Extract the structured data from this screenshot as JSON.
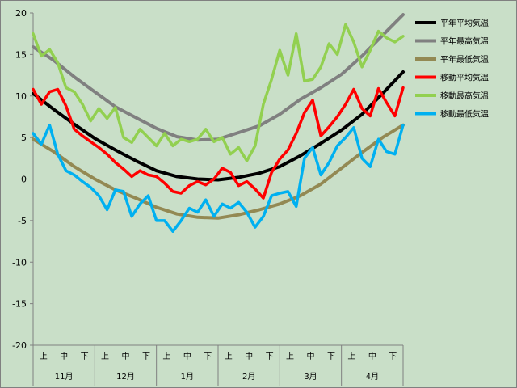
{
  "chart_data": {
    "type": "line",
    "title": "",
    "xlabel": "",
    "ylabel": "",
    "ylim": [
      -20,
      20
    ],
    "y_ticks": [
      20,
      15,
      10,
      5,
      0,
      -5,
      -10,
      -15,
      -20
    ],
    "x_range": [
      0,
      180
    ],
    "grid": "none",
    "legend_position": "right",
    "plot_background": "#c9dfc8",
    "sub_labels": [
      "上",
      "中",
      "下",
      "上",
      "中",
      "下",
      "上",
      "中",
      "下",
      "上",
      "中",
      "下",
      "上",
      "中",
      "下",
      "上",
      "中",
      "下"
    ],
    "months": [
      "11月",
      "12月",
      "1月",
      "2月",
      "3月",
      "4月"
    ],
    "series": [
      {
        "name": "平年平均気温",
        "color": "#000000",
        "x": [
          0,
          10,
          20,
          30,
          40,
          50,
          60,
          70,
          80,
          90,
          100,
          110,
          120,
          130,
          140,
          150,
          160,
          170,
          180
        ],
        "values": [
          10.3,
          8.4,
          6.6,
          4.9,
          3.5,
          2.2,
          1.0,
          0.3,
          0.0,
          -0.1,
          0.2,
          0.7,
          1.5,
          2.8,
          4.3,
          5.9,
          7.8,
          10.3,
          12.9
        ]
      },
      {
        "name": "平年最高気温",
        "color": "#808080",
        "x": [
          0,
          10,
          20,
          30,
          40,
          50,
          60,
          70,
          80,
          90,
          100,
          110,
          120,
          130,
          140,
          150,
          160,
          170,
          180
        ],
        "values": [
          15.9,
          14.3,
          12.3,
          10.5,
          8.7,
          7.4,
          6.1,
          5.1,
          4.7,
          4.8,
          5.6,
          6.4,
          7.8,
          9.6,
          11.0,
          12.6,
          14.8,
          17.3,
          19.8
        ]
      },
      {
        "name": "平年最低気温",
        "color": "#938953",
        "x": [
          0,
          10,
          20,
          30,
          40,
          50,
          60,
          70,
          80,
          90,
          100,
          110,
          120,
          130,
          140,
          150,
          160,
          170,
          180
        ],
        "values": [
          4.8,
          3.3,
          1.5,
          0.0,
          -1.3,
          -2.3,
          -3.4,
          -4.2,
          -4.6,
          -4.7,
          -4.3,
          -3.7,
          -3.0,
          -2.0,
          -0.6,
          1.3,
          3.2,
          5.0,
          6.5
        ]
      },
      {
        "name": "移動平均気温",
        "color": "#ff0000",
        "x": [
          0,
          4,
          8,
          12,
          16,
          20,
          24,
          28,
          32,
          36,
          40,
          44,
          48,
          52,
          56,
          60,
          64,
          68,
          72,
          76,
          80,
          84,
          88,
          92,
          96,
          100,
          104,
          108,
          112,
          116,
          120,
          124,
          128,
          132,
          136,
          140,
          144,
          148,
          152,
          156,
          160,
          164,
          168,
          172,
          176,
          180
        ],
        "values": [
          10.8,
          9.0,
          10.5,
          10.8,
          8.8,
          6.0,
          5.2,
          4.5,
          3.8,
          3.0,
          2.0,
          1.2,
          0.3,
          1.0,
          0.5,
          0.3,
          -0.5,
          -1.5,
          -1.7,
          -0.8,
          -0.3,
          -0.7,
          0.0,
          1.3,
          0.8,
          -0.8,
          -0.3,
          -1.2,
          -2.3,
          0.8,
          2.4,
          3.5,
          5.5,
          8.0,
          9.5,
          5.2,
          6.3,
          7.5,
          9.0,
          10.8,
          8.5,
          7.6,
          10.9,
          9.2,
          7.6,
          11.0
        ]
      },
      {
        "name": "移動最高気温",
        "color": "#92d050",
        "x": [
          0,
          4,
          8,
          12,
          16,
          20,
          24,
          28,
          32,
          36,
          40,
          44,
          48,
          52,
          56,
          60,
          64,
          68,
          72,
          76,
          80,
          84,
          88,
          92,
          96,
          100,
          104,
          108,
          112,
          116,
          120,
          124,
          128,
          132,
          136,
          140,
          144,
          148,
          152,
          156,
          160,
          164,
          168,
          172,
          176,
          180
        ],
        "values": [
          17.5,
          14.8,
          15.6,
          14.0,
          11.0,
          10.5,
          9.0,
          7.0,
          8.5,
          7.3,
          8.6,
          5.0,
          4.4,
          6.0,
          5.0,
          4.0,
          5.5,
          4.0,
          4.8,
          4.5,
          4.8,
          6.0,
          4.5,
          5.0,
          3.0,
          3.8,
          2.2,
          4.0,
          9.0,
          12.0,
          15.5,
          12.5,
          17.5,
          11.8,
          12.0,
          13.5,
          16.3,
          15.0,
          18.6,
          16.5,
          13.5,
          15.5,
          17.8,
          17.0,
          16.5,
          17.2
        ]
      },
      {
        "name": "移動最低気温",
        "color": "#00b0f0",
        "x": [
          0,
          4,
          8,
          12,
          16,
          20,
          24,
          28,
          32,
          36,
          40,
          44,
          48,
          52,
          56,
          60,
          64,
          68,
          72,
          76,
          80,
          84,
          88,
          92,
          96,
          100,
          104,
          108,
          112,
          116,
          120,
          124,
          128,
          132,
          136,
          140,
          144,
          148,
          152,
          156,
          160,
          164,
          168,
          172,
          176,
          180
        ],
        "values": [
          5.5,
          4.2,
          6.5,
          3.0,
          1.0,
          0.5,
          -0.3,
          -1.0,
          -2.0,
          -3.7,
          -1.3,
          -1.5,
          -4.5,
          -3.0,
          -2.0,
          -5.0,
          -5.0,
          -6.3,
          -5.0,
          -3.5,
          -4.0,
          -2.5,
          -4.5,
          -3.0,
          -3.5,
          -2.8,
          -4.0,
          -5.8,
          -4.5,
          -2.0,
          -1.7,
          -1.5,
          -3.3,
          2.5,
          3.8,
          0.5,
          2.0,
          4.0,
          5.0,
          6.2,
          2.5,
          1.5,
          4.8,
          3.3,
          3.0,
          6.5
        ]
      }
    ]
  }
}
